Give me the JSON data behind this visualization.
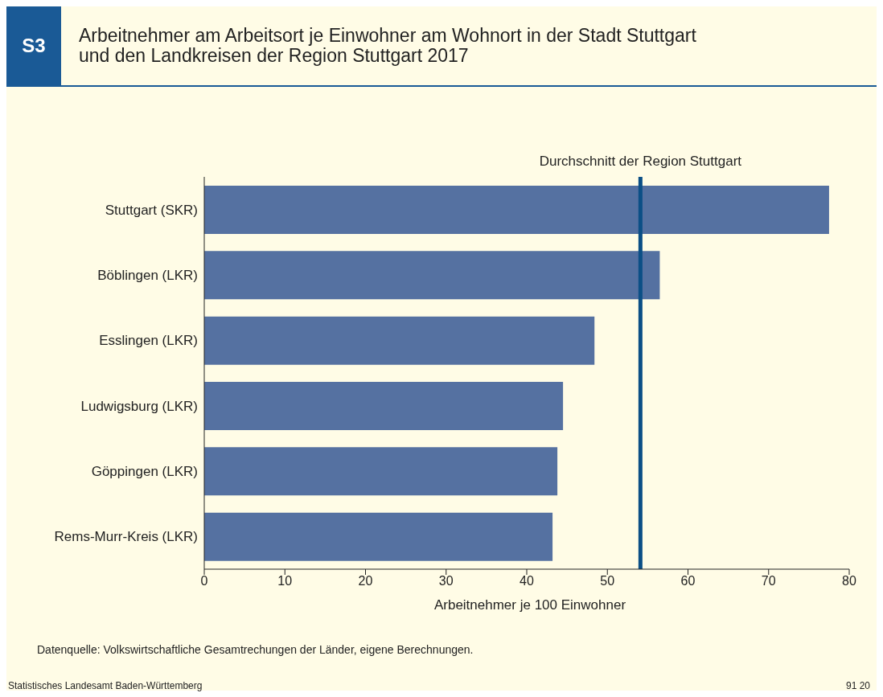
{
  "chart_data": {
    "type": "bar",
    "orientation": "horizontal",
    "title": "Arbeitnehmer am Arbeitsort je Einwohner am Wohnort in der Stadt Stuttgart\nund den Landkreisen der Region Stuttgart 2017",
    "xlabel": "Arbeitnehmer je 100 Einwohner",
    "categories": [
      "Stuttgart (SKR)",
      "Böblingen (LKR)",
      "Esslingen (LKR)",
      "Ludwigsburg (LKR)",
      "Göppingen (LKR)",
      "Rems-Murr-Kreis (LKR)"
    ],
    "values": [
      77.5,
      56.5,
      48.4,
      44.5,
      43.8,
      43.2
    ],
    "color": "#5571a1",
    "xlim": [
      0,
      80
    ],
    "xticks": [
      0,
      10,
      20,
      30,
      40,
      50,
      60,
      70,
      80
    ],
    "grid": false,
    "legend": false,
    "ref_lines": [
      {
        "axis": "x",
        "value": 54.1,
        "label": "Durchschnitt der Region Stuttgart",
        "color": "#0b4f86"
      }
    ],
    "annotations": [
      "S3",
      "Datenquelle: Volkswirtschaftliche Gesamtrechungen der Länder, eigene Berechnungen.",
      "Statistisches Landesamt Baden-Württemberg",
      "91 20"
    ]
  }
}
